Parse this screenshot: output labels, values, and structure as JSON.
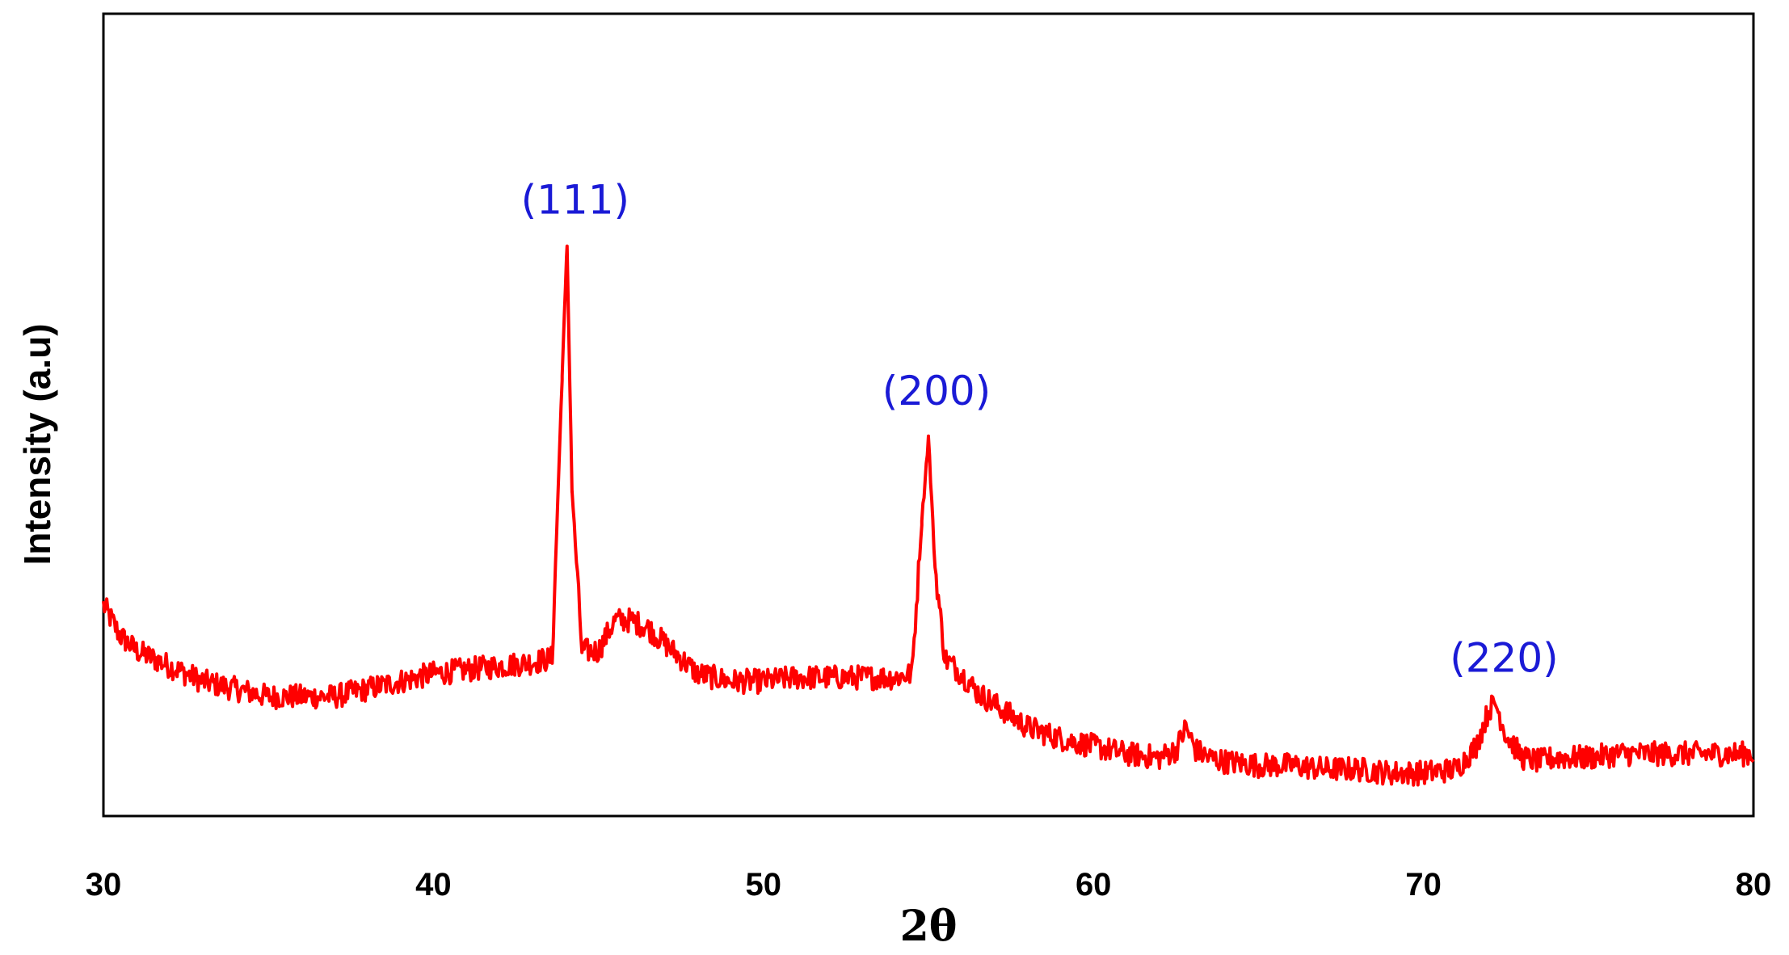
{
  "chart_data": {
    "type": "line",
    "xlabel": "2θ",
    "ylabel": "Intensity (a.u)",
    "xlim": [
      30,
      80
    ],
    "ylim": [
      0,
      100
    ],
    "x_ticks": [
      30,
      40,
      50,
      60,
      70,
      80
    ],
    "x_tick_labels": [
      "30",
      "40",
      "50",
      "60",
      "70",
      "80"
    ],
    "y_ticks_shown": false,
    "grid": false,
    "legend": "none",
    "colors": {
      "line": "#ff0000",
      "annotation": "#1a1ad6",
      "axes": "#000000"
    },
    "series": [
      {
        "x": [
          30,
          30.5,
          31,
          32,
          33,
          34,
          35,
          36,
          37,
          38,
          39,
          40,
          41,
          42,
          43,
          43.6,
          43.9,
          44.05,
          44.2,
          44.5,
          45,
          45.5,
          46,
          46.5,
          47,
          47.5,
          48,
          49,
          50,
          51,
          52,
          53,
          54,
          54.5,
          54.8,
          55.0,
          55.2,
          55.5,
          56,
          56.5,
          57,
          57.5,
          58,
          59,
          60,
          61,
          62,
          62.5,
          62.8,
          63.1,
          63.5,
          64,
          65,
          66,
          67,
          68,
          69,
          70,
          71,
          71.6,
          72.0,
          72.2,
          72.5,
          73,
          73.5,
          74,
          75,
          76,
          77,
          78,
          79,
          80
        ],
        "y": [
          25,
          21,
          19,
          17,
          15,
          14,
          13,
          13,
          13,
          14,
          15,
          16,
          16.5,
          17,
          17.5,
          18,
          55,
          72,
          40,
          19,
          19,
          23,
          23,
          22,
          20,
          18,
          16,
          15,
          15,
          15.5,
          15.5,
          15.5,
          15.5,
          16,
          36,
          47,
          30,
          18,
          16,
          13.5,
          12,
          10.5,
          9,
          7.5,
          6.5,
          5.5,
          5,
          6,
          9,
          6,
          5,
          4.5,
          4,
          4,
          3.5,
          3.5,
          3,
          3,
          3.5,
          6.5,
          11.5,
          12,
          8,
          5,
          4.5,
          5,
          5,
          5.5,
          5.5,
          5.5,
          5.5,
          5.5
        ]
      }
    ],
    "annotations": [
      {
        "text": "(111)",
        "x": 44.05,
        "y": 72
      },
      {
        "text": "(200)",
        "x": 55.0,
        "y": 47
      },
      {
        "text": "(220)",
        "x": 72.2,
        "y": 12
      }
    ]
  }
}
